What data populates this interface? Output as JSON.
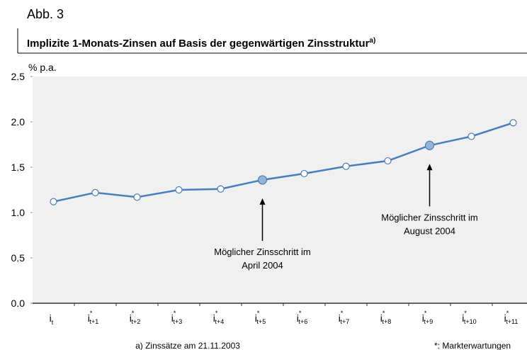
{
  "chart_data": {
    "type": "line",
    "figure_label": "Abb. 3",
    "title": "Implizite 1-Monats-Zinsen auf Basis der gegenwärtigen Zinsstruktur",
    "title_note": "a)",
    "y_unit": "% p.a.",
    "categories": [
      {
        "base": "i",
        "sub": "t"
      },
      {
        "base": "i",
        "sup": "*",
        "sub": "t+1"
      },
      {
        "base": "i",
        "sup": "*",
        "sub": "t+2"
      },
      {
        "base": "i",
        "sup": "*",
        "sub": "t+3"
      },
      {
        "base": "i",
        "sup": "*",
        "sub": "t+4"
      },
      {
        "base": "i",
        "sup": "*",
        "sub": "t+5"
      },
      {
        "base": "i",
        "sup": "*",
        "sub": "t+6"
      },
      {
        "base": "i",
        "sup": "*",
        "sub": "t+7"
      },
      {
        "base": "i",
        "sup": "*",
        "sub": "t+8"
      },
      {
        "base": "i",
        "sup": "*",
        "sub": "t+9"
      },
      {
        "base": "i",
        "sup": "*",
        "sub": "t+10"
      },
      {
        "base": "i",
        "sup": "*",
        "sub": "t+11"
      }
    ],
    "values": [
      1.12,
      1.22,
      1.17,
      1.25,
      1.26,
      1.36,
      1.43,
      1.51,
      1.57,
      1.74,
      1.84,
      1.99
    ],
    "color": "#4a7ebb",
    "highlight_indices": [
      5,
      9
    ],
    "highlight_color": "#95b3d7",
    "ylim": [
      0,
      2.5
    ],
    "yticks": [
      {
        "value": 0,
        "label": "0.0"
      },
      0.5,
      {
        "value": 1,
        "label": "1.0"
      },
      1.5,
      {
        "value": 2,
        "label": "2.0"
      },
      2.5
    ],
    "annotations": [
      {
        "lines": [
          "Möglicher Zinsschritt im",
          "April 2004"
        ]
      },
      {
        "lines": [
          "Möglicher Zinsschritt im",
          "August 2004"
        ]
      }
    ],
    "footnotes": [
      "a) Zinssätze am 21.11.2003",
      "*: Markterwartungen"
    ]
  }
}
